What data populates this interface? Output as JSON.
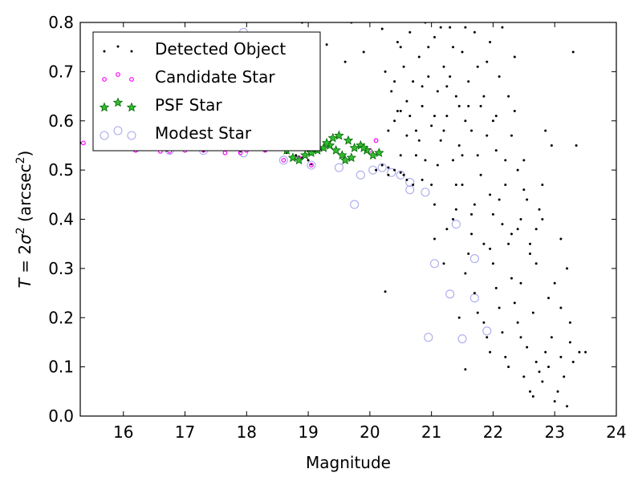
{
  "chart_data": {
    "type": "scatter",
    "xlabel": "Magnitude",
    "ylabel": "T = 2σ² (arcsec²)",
    "xlim": [
      15.3,
      24
    ],
    "ylim": [
      0.0,
      0.8
    ],
    "xticks": [
      16,
      17,
      18,
      19,
      20,
      21,
      22,
      23,
      24
    ],
    "yticks": [
      0.0,
      0.1,
      0.2,
      0.3,
      0.4,
      0.5,
      0.6,
      0.7,
      0.8
    ],
    "legend_position": "top-left",
    "grid": false,
    "series": [
      {
        "name": "Detected Object",
        "marker": "dot",
        "color": "#000000",
        "points": [
          [
            15.3,
            0.555
          ],
          [
            15.6,
            0.552
          ],
          [
            15.9,
            0.548
          ],
          [
            16.1,
            0.546
          ],
          [
            16.3,
            0.541
          ],
          [
            16.5,
            0.545
          ],
          [
            16.7,
            0.54
          ],
          [
            16.9,
            0.542
          ],
          [
            17.1,
            0.544
          ],
          [
            17.3,
            0.539
          ],
          [
            17.5,
            0.541
          ],
          [
            17.7,
            0.543
          ],
          [
            17.9,
            0.538
          ],
          [
            18.1,
            0.542
          ],
          [
            18.3,
            0.54
          ],
          [
            18.5,
            0.545
          ],
          [
            18.65,
            0.535
          ],
          [
            18.8,
            0.53
          ],
          [
            18.9,
            0.525
          ],
          [
            19.0,
            0.52
          ],
          [
            19.05,
            0.512
          ],
          [
            18.9,
            0.8
          ],
          [
            19.3,
            0.755
          ],
          [
            19.6,
            0.72
          ],
          [
            19.7,
            0.8
          ],
          [
            19.9,
            0.74
          ],
          [
            20.2,
            0.787
          ],
          [
            20.4,
            0.68
          ],
          [
            20.5,
            0.75
          ],
          [
            20.5,
            0.62
          ],
          [
            20.1,
            0.5
          ],
          [
            20.2,
            0.51
          ],
          [
            20.3,
            0.505
          ],
          [
            20.4,
            0.5
          ],
          [
            20.5,
            0.495
          ],
          [
            20.6,
            0.48
          ],
          [
            20.7,
            0.47
          ],
          [
            20.55,
            0.49
          ],
          [
            20.3,
            0.49
          ],
          [
            20.25,
            0.253
          ],
          [
            20.45,
            0.62
          ],
          [
            20.6,
            0.57
          ],
          [
            20.8,
            0.56
          ],
          [
            20.9,
            0.52
          ],
          [
            20.85,
            0.48
          ],
          [
            21.0,
            0.47
          ],
          [
            21.05,
            0.36
          ],
          [
            21.2,
            0.31
          ],
          [
            21.25,
            0.38
          ],
          [
            21.4,
            0.42
          ],
          [
            21.5,
            0.47
          ],
          [
            21.55,
            0.29
          ],
          [
            21.6,
            0.33
          ],
          [
            21.45,
            0.2
          ],
          [
            21.55,
            0.095
          ],
          [
            21.7,
            0.25
          ],
          [
            21.75,
            0.21
          ],
          [
            21.85,
            0.19
          ],
          [
            21.9,
            0.16
          ],
          [
            21.95,
            0.13
          ],
          [
            22.0,
            0.31
          ],
          [
            22.05,
            0.26
          ],
          [
            22.1,
            0.22
          ],
          [
            22.15,
            0.17
          ],
          [
            22.2,
            0.12
          ],
          [
            22.25,
            0.1
          ],
          [
            22.3,
            0.28
          ],
          [
            22.35,
            0.23
          ],
          [
            22.4,
            0.19
          ],
          [
            22.45,
            0.16
          ],
          [
            22.5,
            0.08
          ],
          [
            22.55,
            0.14
          ],
          [
            22.6,
            0.05
          ],
          [
            22.65,
            0.04
          ],
          [
            22.7,
            0.11
          ],
          [
            22.75,
            0.09
          ],
          [
            22.8,
            0.07
          ],
          [
            22.85,
            0.13
          ],
          [
            22.9,
            0.1
          ],
          [
            22.95,
            0.16
          ],
          [
            23.0,
            0.03
          ],
          [
            23.05,
            0.05
          ],
          [
            23.1,
            0.12
          ],
          [
            23.15,
            0.08
          ],
          [
            23.2,
            0.02
          ],
          [
            23.25,
            0.15
          ],
          [
            23.3,
            0.11
          ],
          [
            23.4,
            0.13
          ],
          [
            23.5,
            0.13
          ],
          [
            23.3,
            0.74
          ],
          [
            23.35,
            0.55
          ],
          [
            23.2,
            0.3
          ],
          [
            23.1,
            0.36
          ],
          [
            22.95,
            0.55
          ],
          [
            22.85,
            0.58
          ],
          [
            22.8,
            0.47
          ],
          [
            22.75,
            0.42
          ],
          [
            22.7,
            0.38
          ],
          [
            22.6,
            0.35
          ],
          [
            22.55,
            0.44
          ],
          [
            22.5,
            0.52
          ],
          [
            22.45,
            0.4
          ],
          [
            22.4,
            0.5
          ],
          [
            22.35,
            0.62
          ],
          [
            22.3,
            0.57
          ],
          [
            22.25,
            0.65
          ],
          [
            22.2,
            0.47
          ],
          [
            22.15,
            0.39
          ],
          [
            22.1,
            0.69
          ],
          [
            22.05,
            0.54
          ],
          [
            22.0,
            0.6
          ],
          [
            21.95,
            0.45
          ],
          [
            21.9,
            0.72
          ],
          [
            21.85,
            0.35
          ],
          [
            21.8,
            0.63
          ],
          [
            21.75,
            0.53
          ],
          [
            21.7,
            0.78
          ],
          [
            21.65,
            0.41
          ],
          [
            21.6,
            0.68
          ],
          [
            21.55,
            0.6
          ],
          [
            21.5,
            0.74
          ],
          [
            21.45,
            0.55
          ],
          [
            21.4,
            0.65
          ],
          [
            21.35,
            0.52
          ],
          [
            21.3,
            0.79
          ],
          [
            21.25,
            0.61
          ],
          [
            21.2,
            0.71
          ],
          [
            21.15,
            0.56
          ],
          [
            21.1,
            0.66
          ],
          [
            21.05,
            0.77
          ],
          [
            21.0,
            0.59
          ],
          [
            20.95,
            0.69
          ],
          [
            20.9,
            0.8
          ],
          [
            20.85,
            0.63
          ],
          [
            20.8,
            0.73
          ],
          [
            20.75,
            0.58
          ],
          [
            20.7,
            0.68
          ],
          [
            20.65,
            0.78
          ],
          [
            20.6,
            0.64
          ],
          [
            20.55,
            0.71
          ],
          [
            20.5,
            0.53
          ],
          [
            20.45,
            0.76
          ],
          [
            20.4,
            0.6
          ],
          [
            20.35,
            0.66
          ],
          [
            20.3,
            0.58
          ],
          [
            20.25,
            0.7
          ],
          [
            21.3,
            0.69
          ],
          [
            21.6,
            0.63
          ],
          [
            21.9,
            0.57
          ],
          [
            22.2,
            0.52
          ],
          [
            22.5,
            0.46
          ],
          [
            22.8,
            0.4
          ],
          [
            21.1,
            0.51
          ],
          [
            21.4,
            0.47
          ],
          [
            21.7,
            0.43
          ],
          [
            22.0,
            0.41
          ],
          [
            22.3,
            0.37
          ],
          [
            22.6,
            0.33
          ],
          [
            21.2,
            0.58
          ],
          [
            21.5,
            0.53
          ],
          [
            21.8,
            0.49
          ],
          [
            22.1,
            0.44
          ],
          [
            22.4,
            0.38
          ],
          [
            22.7,
            0.31
          ],
          [
            23.0,
            0.27
          ],
          [
            23.1,
            0.22
          ],
          [
            23.25,
            0.19
          ],
          [
            22.9,
            0.24
          ],
          [
            22.65,
            0.21
          ],
          [
            22.45,
            0.27
          ],
          [
            20.75,
            0.53
          ],
          [
            21.05,
            0.43
          ],
          [
            21.35,
            0.4
          ],
          [
            21.65,
            0.37
          ],
          [
            21.95,
            0.34
          ],
          [
            22.25,
            0.35
          ],
          [
            20.95,
            0.75
          ],
          [
            21.15,
            0.79
          ],
          [
            21.35,
            0.75
          ],
          [
            21.55,
            0.79
          ],
          [
            21.75,
            0.71
          ],
          [
            21.95,
            0.76
          ],
          [
            22.15,
            0.79
          ],
          [
            22.35,
            0.73
          ],
          [
            20.65,
            0.61
          ],
          [
            20.85,
            0.67
          ],
          [
            21.05,
            0.61
          ],
          [
            21.25,
            0.67
          ],
          [
            21.45,
            0.63
          ],
          [
            21.65,
            0.58
          ],
          [
            21.85,
            0.65
          ],
          [
            22.05,
            0.61
          ]
        ]
      },
      {
        "name": "Candidate Star",
        "marker": "small-ring",
        "color": "#ff00ff",
        "points": [
          [
            15.35,
            0.555
          ],
          [
            15.9,
            0.545
          ],
          [
            16.2,
            0.54
          ],
          [
            16.6,
            0.538
          ],
          [
            16.75,
            0.538
          ],
          [
            17.0,
            0.54
          ],
          [
            17.3,
            0.54
          ],
          [
            17.65,
            0.535
          ],
          [
            17.9,
            0.535
          ],
          [
            18.0,
            0.54
          ],
          [
            18.3,
            0.54
          ],
          [
            18.6,
            0.52
          ],
          [
            18.85,
            0.525
          ],
          [
            19.05,
            0.51
          ],
          [
            19.6,
            0.52
          ],
          [
            20.1,
            0.56
          ],
          [
            20.0,
            0.54
          ]
        ]
      },
      {
        "name": "PSF Star",
        "marker": "star",
        "color": "#00aa00",
        "points": [
          [
            18.65,
            0.54
          ],
          [
            18.75,
            0.525
          ],
          [
            18.85,
            0.52
          ],
          [
            18.95,
            0.53
          ],
          [
            19.05,
            0.535
          ],
          [
            19.15,
            0.54
          ],
          [
            19.25,
            0.545
          ],
          [
            19.35,
            0.55
          ],
          [
            19.45,
            0.54
          ],
          [
            19.55,
            0.53
          ],
          [
            19.6,
            0.52
          ],
          [
            19.7,
            0.525
          ],
          [
            19.75,
            0.545
          ],
          [
            19.85,
            0.55
          ],
          [
            19.95,
            0.54
          ],
          [
            20.05,
            0.53
          ],
          [
            20.15,
            0.535
          ],
          [
            19.4,
            0.565
          ],
          [
            19.5,
            0.57
          ],
          [
            19.3,
            0.555
          ],
          [
            19.65,
            0.56
          ],
          [
            19.9,
            0.545
          ]
        ]
      },
      {
        "name": "Modest Star",
        "marker": "ring",
        "color": "#aaaaee",
        "points": [
          [
            15.9,
            0.578
          ],
          [
            16.2,
            0.545
          ],
          [
            16.75,
            0.54
          ],
          [
            17.3,
            0.54
          ],
          [
            17.95,
            0.535
          ],
          [
            17.95,
            0.78
          ],
          [
            18.6,
            0.52
          ],
          [
            19.05,
            0.51
          ],
          [
            19.5,
            0.505
          ],
          [
            19.75,
            0.43
          ],
          [
            19.85,
            0.49
          ],
          [
            20.05,
            0.5
          ],
          [
            20.2,
            0.505
          ],
          [
            20.35,
            0.495
          ],
          [
            20.5,
            0.49
          ],
          [
            20.65,
            0.475
          ],
          [
            20.65,
            0.46
          ],
          [
            20.9,
            0.455
          ],
          [
            21.4,
            0.39
          ],
          [
            21.05,
            0.31
          ],
          [
            21.7,
            0.32
          ],
          [
            21.3,
            0.248
          ],
          [
            21.7,
            0.24
          ],
          [
            20.95,
            0.16
          ],
          [
            21.5,
            0.157
          ],
          [
            21.9,
            0.173
          ]
        ]
      }
    ]
  }
}
